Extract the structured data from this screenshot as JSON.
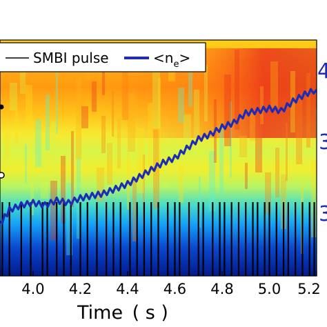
{
  "chart_data": {
    "type": "line",
    "background": "heatmap",
    "xlabel": "Time ( s )",
    "xlim": [
      3.86,
      5.2
    ],
    "x_ticks": [
      "4.0",
      "4.2",
      "4.4",
      "4.6",
      "4.8",
      "5.0",
      "5.2"
    ],
    "x_tick_values": [
      4.0,
      4.2,
      4.4,
      4.6,
      4.8,
      5.0,
      5.2
    ],
    "right_axis_ticks_visible": [
      "4",
      "3",
      "3"
    ],
    "legend": {
      "placement": "top-left",
      "entries": [
        "SMBI pulse",
        "<n",
        "e",
        ">"
      ]
    },
    "series": [
      {
        "name": "SMBI pulse",
        "style": "vertical-lines",
        "color": "#000000",
        "x": [
          3.87,
          3.9,
          3.95,
          3.99,
          4.04,
          4.06,
          4.1,
          4.13,
          4.16,
          4.2,
          4.23,
          4.27,
          4.31,
          4.34,
          4.37,
          4.41,
          4.44,
          4.47,
          4.5,
          4.53,
          4.57,
          4.6,
          4.62,
          4.66,
          4.7,
          4.72,
          4.76,
          4.79,
          4.81,
          4.84,
          4.87,
          4.9,
          4.93,
          4.95,
          4.98,
          5.0,
          5.03,
          5.06,
          5.08,
          5.11,
          5.14,
          5.17,
          5.19
        ]
      },
      {
        "name": "<ne>",
        "style": "line",
        "color": "#1d2bb5",
        "x": [
          3.86,
          3.9,
          3.95,
          4.0,
          4.05,
          4.1,
          4.15,
          4.2,
          4.25,
          4.3,
          4.35,
          4.4,
          4.45,
          4.5,
          4.55,
          4.6,
          4.65,
          4.7,
          4.75,
          4.8,
          4.85,
          4.9,
          4.95,
          5.0,
          5.05,
          5.1,
          5.15,
          5.2
        ],
        "y": [
          0.22,
          0.28,
          0.3,
          0.31,
          0.3,
          0.32,
          0.31,
          0.33,
          0.34,
          0.35,
          0.37,
          0.39,
          0.42,
          0.45,
          0.48,
          0.5,
          0.54,
          0.58,
          0.6,
          0.63,
          0.65,
          0.69,
          0.7,
          0.71,
          0.7,
          0.74,
          0.77,
          0.79
        ]
      }
    ],
    "heatmap_colors": [
      "#00007f",
      "#0a3fd6",
      "#14a6ff",
      "#5cf0d0",
      "#b7f552",
      "#ffe01a",
      "#ff8a0d",
      "#e0261a"
    ]
  }
}
